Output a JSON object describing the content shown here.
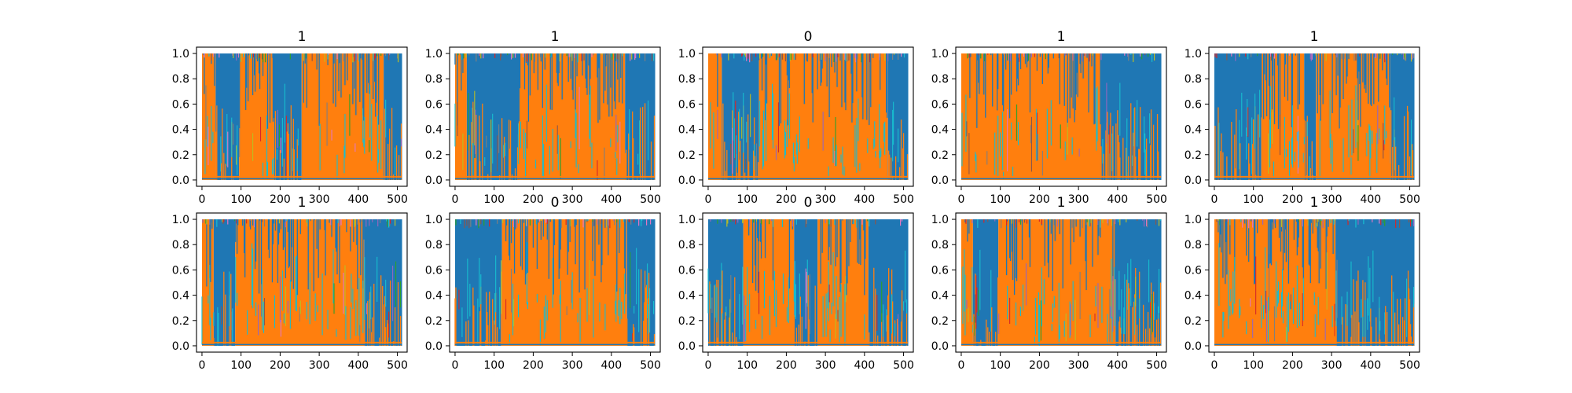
{
  "figure": {
    "background": "#ffffff"
  },
  "chart_data": {
    "type": "line",
    "layout": "grid 2 rows x 5 columns of subplots",
    "xlim": [
      -14,
      525
    ],
    "ylim": [
      -0.05,
      1.05
    ],
    "xticks": [
      0,
      100,
      200,
      300,
      400,
      500
    ],
    "yticks": [
      0.0,
      0.2,
      0.4,
      0.6,
      0.8,
      1.0
    ],
    "ytick_labels": [
      "0.0",
      "0.2",
      "0.4",
      "0.6",
      "0.8",
      "1.0"
    ],
    "x_points": 512,
    "grid": false,
    "legend": "none",
    "series_colors": {
      "dominant_a": "#1f77b4",
      "dominant_b": "#ff7f0e",
      "minor": [
        "#17becf",
        "#bcbd22",
        "#e377c2",
        "#7f7f7f",
        "#2ca02c",
        "#9467bd",
        "#d62728",
        "#8c564b"
      ]
    },
    "panels": [
      {
        "title": "1",
        "segments": [
          [
            "b",
            0,
            35
          ],
          [
            "a",
            35,
            95
          ],
          [
            "b",
            95,
            185
          ],
          [
            "a",
            185,
            255
          ],
          [
            "b",
            255,
            465
          ],
          [
            "a",
            465,
            512
          ]
        ]
      },
      {
        "title": "1",
        "segments": [
          [
            "b",
            0,
            30
          ],
          [
            "a",
            30,
            165
          ],
          [
            "b",
            165,
            435
          ],
          [
            "a",
            435,
            512
          ]
        ]
      },
      {
        "title": "0",
        "segments": [
          [
            "b",
            0,
            35
          ],
          [
            "a",
            35,
            130
          ],
          [
            "b",
            130,
            460
          ],
          [
            "a",
            460,
            512
          ]
        ]
      },
      {
        "title": "1",
        "segments": [
          [
            "b",
            0,
            355
          ],
          [
            "a",
            355,
            512
          ]
        ]
      },
      {
        "title": "1",
        "segments": [
          [
            "a",
            0,
            120
          ],
          [
            "b",
            120,
            230
          ],
          [
            "a",
            230,
            260
          ],
          [
            "b",
            260,
            450
          ],
          [
            "a",
            450,
            512
          ]
        ]
      },
      {
        "title": "1",
        "segments": [
          [
            "b",
            0,
            30
          ],
          [
            "a",
            30,
            85
          ],
          [
            "b",
            85,
            415
          ],
          [
            "a",
            415,
            512
          ]
        ]
      },
      {
        "title": "0",
        "segments": [
          [
            "a",
            0,
            120
          ],
          [
            "b",
            120,
            440
          ],
          [
            "a",
            440,
            512
          ]
        ]
      },
      {
        "title": "0",
        "segments": [
          [
            "a",
            0,
            90
          ],
          [
            "b",
            90,
            220
          ],
          [
            "a",
            220,
            280
          ],
          [
            "b",
            280,
            410
          ],
          [
            "a",
            410,
            512
          ]
        ]
      },
      {
        "title": "1",
        "segments": [
          [
            "b",
            0,
            30
          ],
          [
            "a",
            30,
            95
          ],
          [
            "b",
            95,
            395
          ],
          [
            "a",
            395,
            512
          ]
        ]
      },
      {
        "title": "1",
        "segments": [
          [
            "b",
            0,
            310
          ],
          [
            "a",
            310,
            512
          ]
        ]
      }
    ]
  }
}
